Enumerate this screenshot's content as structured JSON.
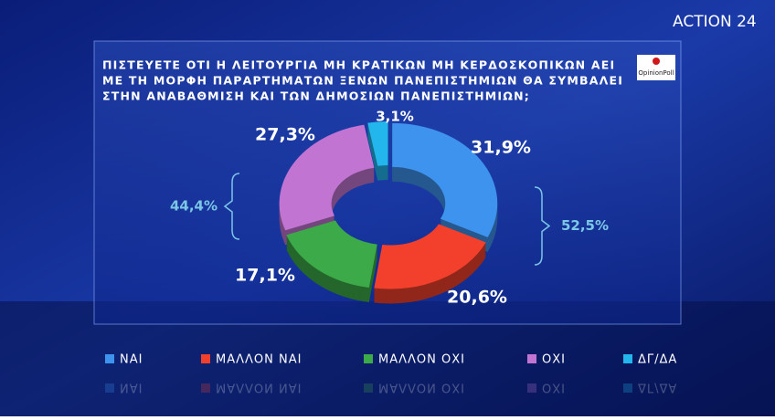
{
  "brand": "ACTION 24",
  "pollster": "OpinionPoll",
  "chart_data": {
    "type": "donut",
    "title_lines": [
      "ΠΙΣΤΕΥΕΤΕ ΟΤΙ Η ΛΕΙΤΟΥΡΓΙΑ ΜΗ ΚΡΑΤΙΚΩΝ ΜΗ ΚΕΡΔΟΣΚΟΠΙΚΩΝ ΑΕΙ",
      "ΜΕ ΤΗ ΜΟΡΦΗ ΠΑΡΑΡΤΗΜΑΤΩΝ ΞΕΝΩΝ ΠΑΝΕΠΙΣΤΗΜΙΩΝ ΘΑ ΣΥΜΒΑΛΕΙ",
      "ΣΤΗΝ ΑΝΑΒΑΘΜΙΣΗ ΚΑΙ ΤΩΝ ΔΗΜΟΣΙΩΝ ΠΑΝΕΠΙΣΤΗΜΙΩΝ;"
    ],
    "categories": [
      "ΝΑΙ",
      "ΜΑΛΛΟΝ ΝΑΙ",
      "ΜΑΛΛΟΝ ΟΧΙ",
      "ΟΧΙ",
      "ΔΓ/ΔΑ"
    ],
    "values": [
      31.9,
      20.6,
      17.1,
      27.3,
      3.1
    ],
    "value_labels": [
      "31,9%",
      "20,6%",
      "17,1%",
      "27,3%",
      "3,1%"
    ],
    "colors": [
      "#3d93ee",
      "#f2402c",
      "#3caa48",
      "#c274d2",
      "#22b6ec"
    ],
    "groups": [
      {
        "value": 52.5,
        "label": "52,5%"
      },
      {
        "value": 44.4,
        "label": "44,4%"
      }
    ]
  }
}
